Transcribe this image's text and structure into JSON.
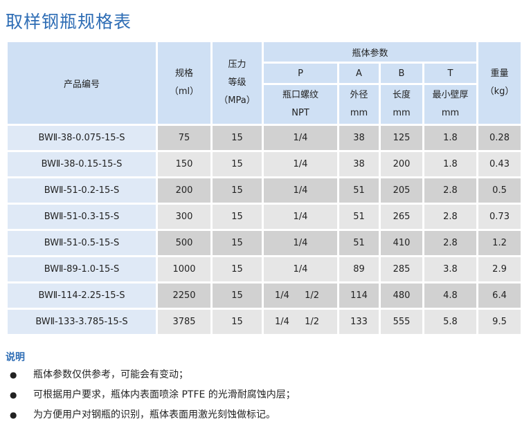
{
  "title": "取样钢瓶规格表",
  "table": {
    "headers": {
      "product_no": "产品编号",
      "spec_line1": "规格",
      "spec_line2": "（ml）",
      "pressure_line1": "压力",
      "pressure_line2": "等级",
      "pressure_line3": "（MPa）",
      "bottle_params": "瓶体参数",
      "P": "P",
      "A": "A",
      "B": "B",
      "T": "T",
      "weight_line1": "重量",
      "weight_line2": "（kg）",
      "P_sub1": "瓶口螺纹",
      "P_sub2": "NPT",
      "A_sub1": "外径",
      "A_sub2": "mm",
      "B_sub1": "长度",
      "B_sub2": "mm",
      "T_sub1": "最小壁厚",
      "T_sub2": "mm"
    },
    "rows": [
      {
        "product": "BWⅡ-38-0.075-15-S",
        "spec": "75",
        "pressure": "15",
        "p1": "1/4",
        "p2": "",
        "a": "38",
        "b": "125",
        "t": "1.8",
        "weight": "0.28"
      },
      {
        "product": "BWⅡ-38-0.15-15-S",
        "spec": "150",
        "pressure": "15",
        "p1": "1/4",
        "p2": "",
        "a": "38",
        "b": "200",
        "t": "1.8",
        "weight": "0.43"
      },
      {
        "product": "BWⅡ-51-0.2-15-S",
        "spec": "200",
        "pressure": "15",
        "p1": "1/4",
        "p2": "",
        "a": "51",
        "b": "205",
        "t": "2.8",
        "weight": "0.5"
      },
      {
        "product": "BWⅡ-51-0.3-15-S",
        "spec": "300",
        "pressure": "15",
        "p1": "1/4",
        "p2": "",
        "a": "51",
        "b": "265",
        "t": "2.8",
        "weight": "0.73"
      },
      {
        "product": "BWⅡ-51-0.5-15-S",
        "spec": "500",
        "pressure": "15",
        "p1": "1/4",
        "p2": "",
        "a": "51",
        "b": "410",
        "t": "2.8",
        "weight": "1.2"
      },
      {
        "product": "BWⅡ-89-1.0-15-S",
        "spec": "1000",
        "pressure": "15",
        "p1": "1/4",
        "p2": "",
        "a": "89",
        "b": "285",
        "t": "3.8",
        "weight": "2.9"
      },
      {
        "product": "BWⅡ-114-2.25-15-S",
        "spec": "2250",
        "pressure": "15",
        "p1": "1/4",
        "p2": "1/2",
        "a": "114",
        "b": "480",
        "t": "4.8",
        "weight": "6.4"
      },
      {
        "product": "BWⅡ-133-3.785-15-S",
        "spec": "3785",
        "pressure": "15",
        "p1": "1/4",
        "p2": "1/2",
        "a": "133",
        "b": "555",
        "t": "5.8",
        "weight": "9.5"
      }
    ]
  },
  "notes": {
    "title": "说明",
    "items": [
      "瓶体参数仅供参考，可能会有变动；",
      "可根据用户要求，瓶体内表面喷涂 PTFE 的光滑耐腐蚀内层；",
      "为方便用户对钢瓶的识别，瓶体表面用激光刻蚀做标记。"
    ]
  },
  "colors": {
    "title": "#2e6db5",
    "header_bg": "#cfe0f4",
    "row_dark": "#d1d1d1",
    "row_light": "#e6e6e6"
  }
}
